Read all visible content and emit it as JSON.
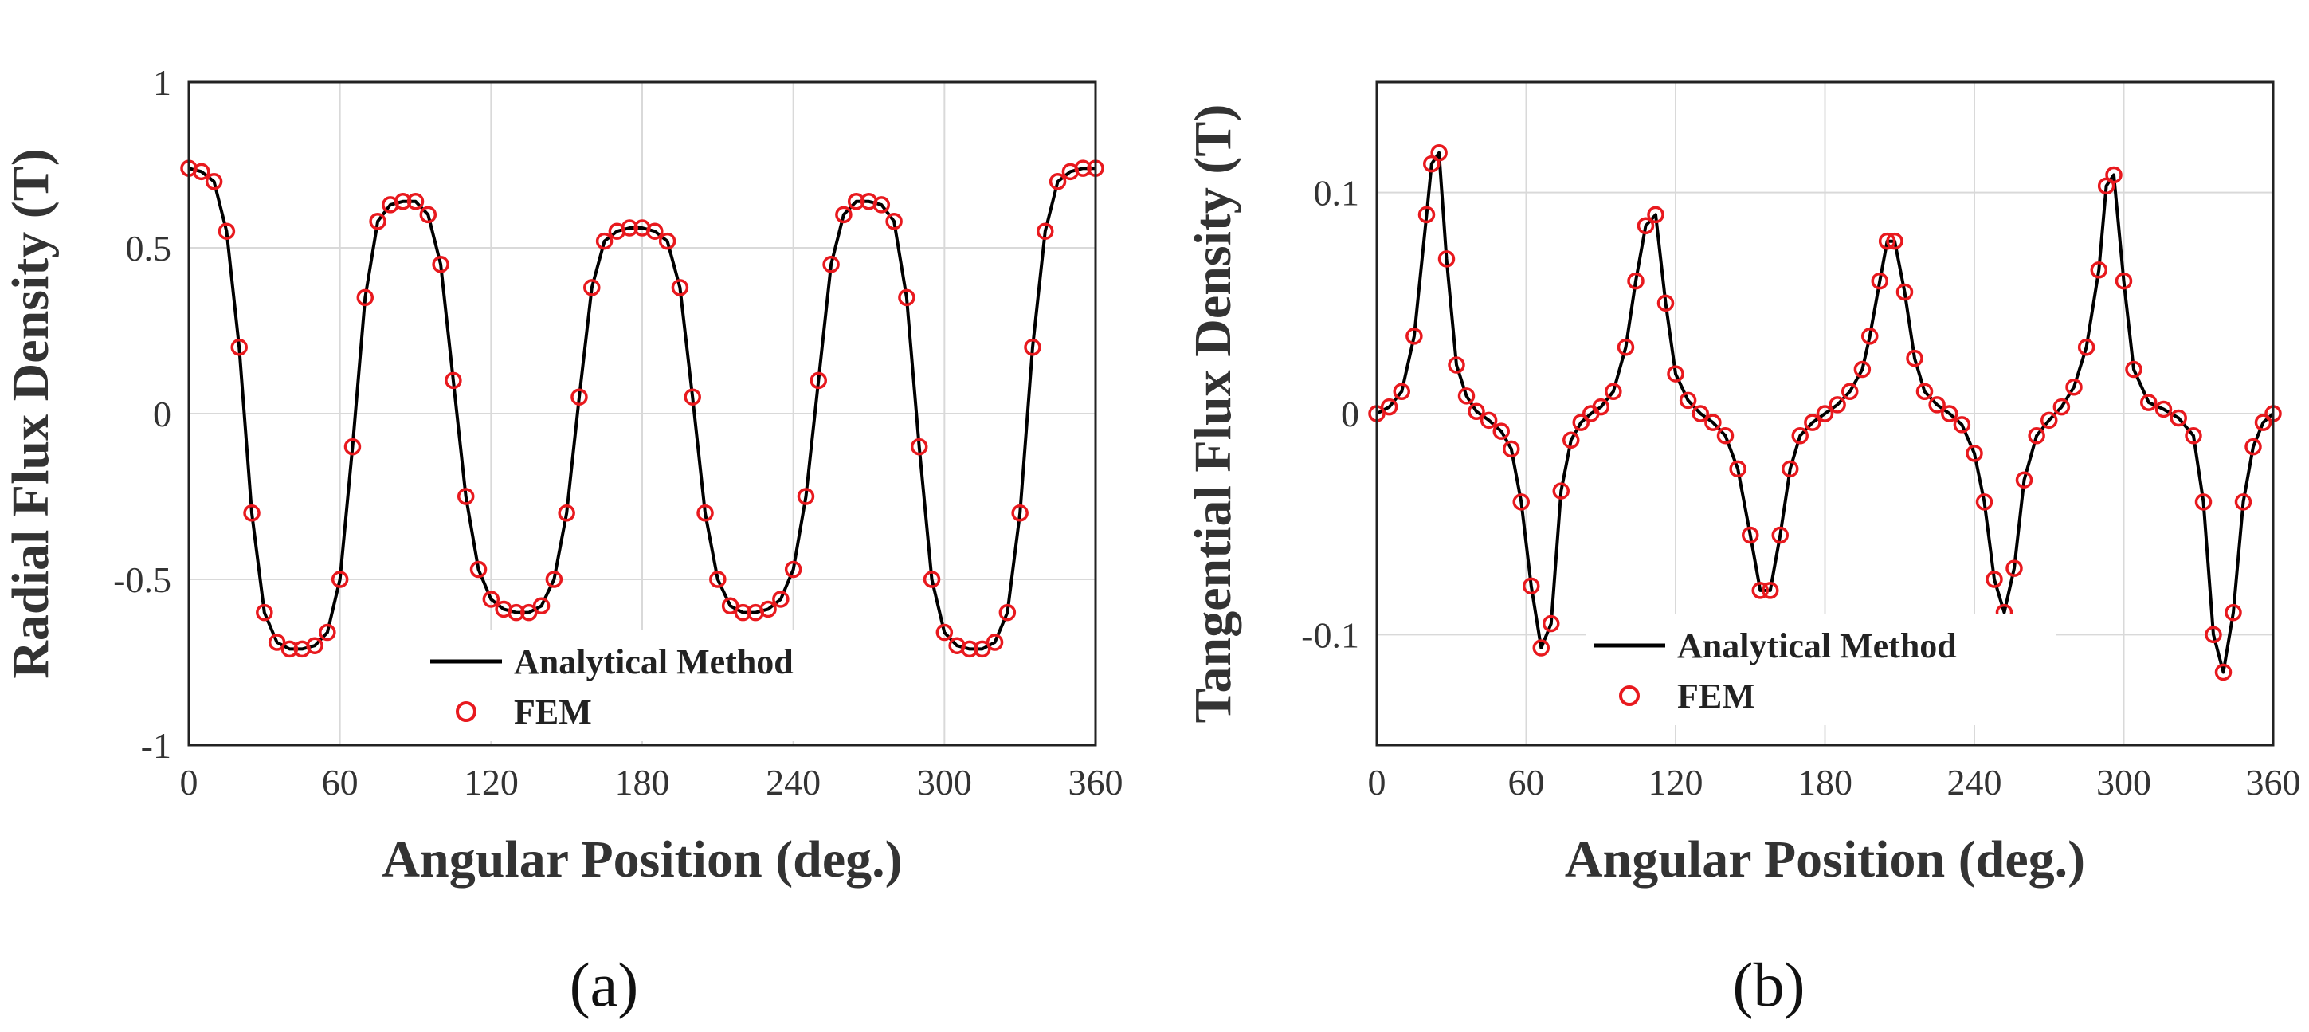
{
  "chart_data": [
    {
      "type": "line",
      "panel_label": "(a)",
      "xlabel": "Angular Position (deg.)",
      "ylabel": "Radial Flux Density (T)",
      "xlim": [
        0,
        360
      ],
      "ylim": [
        -1,
        1
      ],
      "xticks": [
        0,
        60,
        120,
        180,
        240,
        300,
        360
      ],
      "yticks": [
        -1,
        -0.5,
        0,
        0.5,
        1
      ],
      "ytick_labels": [
        "-1",
        "-0.5",
        "0",
        "0.5",
        "1"
      ],
      "grid": true,
      "legend": "bottom-center",
      "series": [
        {
          "name": "Analytical Method",
          "style": "line",
          "color": "#000000",
          "x": [
            0,
            5,
            10,
            15,
            20,
            25,
            30,
            35,
            40,
            45,
            50,
            55,
            60,
            65,
            70,
            75,
            80,
            85,
            90,
            95,
            100,
            105,
            110,
            115,
            120,
            125,
            130,
            135,
            140,
            145,
            150,
            155,
            160,
            165,
            170,
            175,
            180,
            185,
            190,
            195,
            200,
            205,
            210,
            215,
            220,
            225,
            230,
            235,
            240,
            245,
            250,
            255,
            260,
            265,
            270,
            275,
            280,
            285,
            290,
            295,
            300,
            305,
            310,
            315,
            320,
            325,
            330,
            335,
            340,
            345,
            350,
            355,
            360
          ],
          "y": [
            0.74,
            0.73,
            0.7,
            0.55,
            0.2,
            -0.3,
            -0.6,
            -0.69,
            -0.71,
            -0.71,
            -0.7,
            -0.66,
            -0.5,
            -0.1,
            0.35,
            0.58,
            0.63,
            0.64,
            0.64,
            0.6,
            0.45,
            0.1,
            -0.25,
            -0.47,
            -0.56,
            -0.59,
            -0.6,
            -0.6,
            -0.58,
            -0.5,
            -0.3,
            0.05,
            0.38,
            0.52,
            0.55,
            0.56,
            0.56,
            0.55,
            0.52,
            0.38,
            0.05,
            -0.3,
            -0.5,
            -0.58,
            -0.6,
            -0.6,
            -0.59,
            -0.56,
            -0.47,
            -0.25,
            0.1,
            0.45,
            0.6,
            0.64,
            0.64,
            0.63,
            0.58,
            0.35,
            -0.1,
            -0.5,
            -0.66,
            -0.7,
            -0.71,
            -0.71,
            -0.69,
            -0.6,
            -0.3,
            0.2,
            0.55,
            0.7,
            0.73,
            0.74,
            0.74
          ]
        },
        {
          "name": "FEM",
          "style": "marker",
          "color": "#e8191e",
          "x": [
            0,
            5,
            10,
            15,
            20,
            25,
            30,
            35,
            40,
            45,
            50,
            55,
            60,
            65,
            70,
            75,
            80,
            85,
            90,
            95,
            100,
            105,
            110,
            115,
            120,
            125,
            130,
            135,
            140,
            145,
            150,
            155,
            160,
            165,
            170,
            175,
            180,
            185,
            190,
            195,
            200,
            205,
            210,
            215,
            220,
            225,
            230,
            235,
            240,
            245,
            250,
            255,
            260,
            265,
            270,
            275,
            280,
            285,
            290,
            295,
            300,
            305,
            310,
            315,
            320,
            325,
            330,
            335,
            340,
            345,
            350,
            355,
            360
          ],
          "y": [
            0.74,
            0.73,
            0.7,
            0.55,
            0.2,
            -0.3,
            -0.6,
            -0.69,
            -0.71,
            -0.71,
            -0.7,
            -0.66,
            -0.5,
            -0.1,
            0.35,
            0.58,
            0.63,
            0.64,
            0.64,
            0.6,
            0.45,
            0.1,
            -0.25,
            -0.47,
            -0.56,
            -0.59,
            -0.6,
            -0.6,
            -0.58,
            -0.5,
            -0.3,
            0.05,
            0.38,
            0.52,
            0.55,
            0.56,
            0.56,
            0.55,
            0.52,
            0.38,
            0.05,
            -0.3,
            -0.5,
            -0.58,
            -0.6,
            -0.6,
            -0.59,
            -0.56,
            -0.47,
            -0.25,
            0.1,
            0.45,
            0.6,
            0.64,
            0.64,
            0.63,
            0.58,
            0.35,
            -0.1,
            -0.5,
            -0.66,
            -0.7,
            -0.71,
            -0.71,
            -0.69,
            -0.6,
            -0.3,
            0.2,
            0.55,
            0.7,
            0.73,
            0.74,
            0.74
          ]
        }
      ]
    },
    {
      "type": "line",
      "panel_label": "(b)",
      "xlabel": "Angular Position (deg.)",
      "ylabel": "Tangential Flux Density (T)",
      "xlim": [
        0,
        360
      ],
      "ylim": [
        -0.15,
        0.15
      ],
      "xticks": [
        0,
        60,
        120,
        180,
        240,
        300,
        360
      ],
      "yticks": [
        -0.1,
        0,
        0.1
      ],
      "ytick_labels": [
        "-0.1",
        "0",
        "0.1"
      ],
      "grid": true,
      "legend": "bottom-center",
      "series": [
        {
          "name": "Analytical Method",
          "style": "line",
          "color": "#000000",
          "x": [
            0,
            5,
            10,
            15,
            20,
            22,
            25,
            28,
            32,
            36,
            40,
            45,
            50,
            54,
            58,
            62,
            66,
            70,
            74,
            78,
            82,
            86,
            90,
            95,
            100,
            104,
            108,
            112,
            116,
            120,
            125,
            130,
            135,
            140,
            145,
            150,
            154,
            158,
            162,
            166,
            170,
            175,
            180,
            185,
            190,
            195,
            198,
            202,
            205,
            208,
            212,
            216,
            220,
            225,
            230,
            235,
            240,
            244,
            248,
            252,
            256,
            260,
            265,
            270,
            275,
            280,
            285,
            290,
            293,
            296,
            300,
            304,
            310,
            316,
            322,
            328,
            332,
            336,
            340,
            344,
            348,
            352,
            356,
            360
          ],
          "y": [
            0,
            0.003,
            0.01,
            0.035,
            0.09,
            0.113,
            0.118,
            0.07,
            0.022,
            0.008,
            0.001,
            -0.003,
            -0.008,
            -0.016,
            -0.04,
            -0.078,
            -0.106,
            -0.095,
            -0.035,
            -0.012,
            -0.004,
            0,
            0.003,
            0.01,
            0.03,
            0.06,
            0.085,
            0.09,
            0.05,
            0.018,
            0.006,
            0,
            -0.004,
            -0.01,
            -0.025,
            -0.055,
            -0.08,
            -0.08,
            -0.055,
            -0.025,
            -0.01,
            -0.004,
            0,
            0.004,
            0.01,
            0.02,
            0.035,
            0.06,
            0.078,
            0.078,
            0.055,
            0.025,
            0.01,
            0.004,
            0,
            -0.005,
            -0.018,
            -0.04,
            -0.075,
            -0.09,
            -0.07,
            -0.03,
            -0.01,
            -0.003,
            0.003,
            0.012,
            0.03,
            0.065,
            0.103,
            0.108,
            0.06,
            0.02,
            0.005,
            0.002,
            -0.002,
            -0.01,
            -0.04,
            -0.1,
            -0.117,
            -0.09,
            -0.04,
            -0.015,
            -0.004,
            0
          ]
        },
        {
          "name": "FEM",
          "style": "marker",
          "color": "#e8191e",
          "x": [
            0,
            5,
            10,
            15,
            20,
            22,
            25,
            28,
            32,
            36,
            40,
            45,
            50,
            54,
            58,
            62,
            66,
            70,
            74,
            78,
            82,
            86,
            90,
            95,
            100,
            104,
            108,
            112,
            116,
            120,
            125,
            130,
            135,
            140,
            145,
            150,
            154,
            158,
            162,
            166,
            170,
            175,
            180,
            185,
            190,
            195,
            198,
            202,
            205,
            208,
            212,
            216,
            220,
            225,
            230,
            235,
            240,
            244,
            248,
            252,
            256,
            260,
            265,
            270,
            275,
            280,
            285,
            290,
            293,
            296,
            300,
            304,
            310,
            316,
            322,
            328,
            332,
            336,
            340,
            344,
            348,
            352,
            356,
            360
          ],
          "y": [
            0,
            0.003,
            0.01,
            0.035,
            0.09,
            0.113,
            0.118,
            0.07,
            0.022,
            0.008,
            0.001,
            -0.003,
            -0.008,
            -0.016,
            -0.04,
            -0.078,
            -0.106,
            -0.095,
            -0.035,
            -0.012,
            -0.004,
            0,
            0.003,
            0.01,
            0.03,
            0.06,
            0.085,
            0.09,
            0.05,
            0.018,
            0.006,
            0,
            -0.004,
            -0.01,
            -0.025,
            -0.055,
            -0.08,
            -0.08,
            -0.055,
            -0.025,
            -0.01,
            -0.004,
            0,
            0.004,
            0.01,
            0.02,
            0.035,
            0.06,
            0.078,
            0.078,
            0.055,
            0.025,
            0.01,
            0.004,
            0,
            -0.005,
            -0.018,
            -0.04,
            -0.075,
            -0.09,
            -0.07,
            -0.03,
            -0.01,
            -0.003,
            0.003,
            0.012,
            0.03,
            0.065,
            0.103,
            0.108,
            0.06,
            0.02,
            0.005,
            0.002,
            -0.002,
            -0.01,
            -0.04,
            -0.1,
            -0.117,
            -0.09,
            -0.04,
            -0.015,
            -0.004,
            0
          ]
        }
      ]
    }
  ]
}
